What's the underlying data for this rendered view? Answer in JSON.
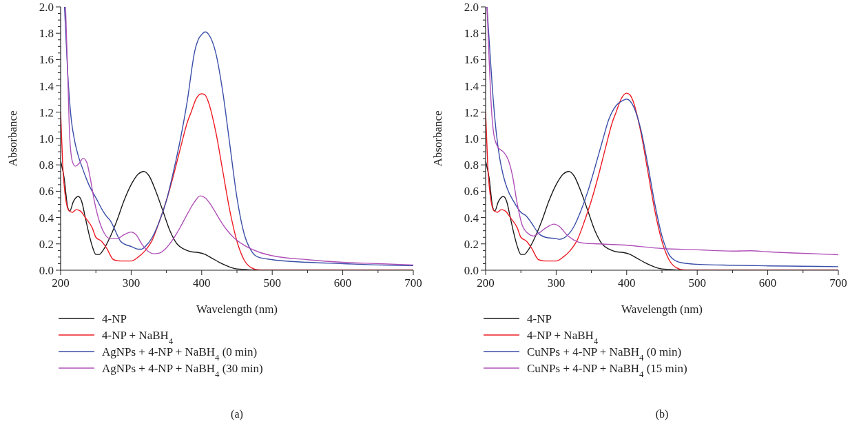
{
  "chart_data": [
    {
      "type": "line",
      "xlabel": "Wavelength (nm)",
      "ylabel": "Absorbance",
      "xlim": [
        200,
        700
      ],
      "ylim": [
        0,
        2
      ],
      "xticks": [
        200,
        {
          "value": 250,
          "label": null
        },
        300,
        {
          "value": 350,
          "label": null
        },
        400,
        {
          "value": 450,
          "label": null
        },
        500,
        {
          "value": 550,
          "label": null
        },
        600,
        {
          "value": 650,
          "label": null
        },
        700
      ],
      "yticks": [
        {
          "value": 0,
          "label": "0.0"
        },
        {
          "value": 0.05,
          "label": null
        },
        {
          "value": 0.1,
          "label": null
        },
        {
          "value": 0.15,
          "label": null
        },
        {
          "value": 0.2,
          "label": "0.2"
        },
        {
          "value": 0.25,
          "label": null
        },
        {
          "value": 0.3,
          "label": null
        },
        {
          "value": 0.35,
          "label": null
        },
        {
          "value": 0.4,
          "label": "0.4"
        },
        {
          "value": 0.45,
          "label": null
        },
        {
          "value": 0.5,
          "label": null
        },
        {
          "value": 0.55,
          "label": null
        },
        {
          "value": 0.6,
          "label": "0.6"
        },
        {
          "value": 0.65,
          "label": null
        },
        {
          "value": 0.7,
          "label": null
        },
        {
          "value": 0.75,
          "label": null
        },
        {
          "value": 0.8,
          "label": "0.8"
        },
        {
          "value": 0.85,
          "label": null
        },
        {
          "value": 0.9,
          "label": null
        },
        {
          "value": 0.95,
          "label": null
        },
        {
          "value": 1,
          "label": "1.0"
        },
        {
          "value": 1.05,
          "label": null
        },
        {
          "value": 1.1,
          "label": null
        },
        {
          "value": 1.15,
          "label": null
        },
        {
          "value": 1.2,
          "label": "1.2"
        },
        {
          "value": 1.25,
          "label": null
        },
        {
          "value": 1.3,
          "label": null
        },
        {
          "value": 1.35,
          "label": null
        },
        {
          "value": 1.4,
          "label": "1.4"
        },
        {
          "value": 1.45,
          "label": null
        },
        {
          "value": 1.5,
          "label": null
        },
        {
          "value": 1.55,
          "label": null
        },
        {
          "value": 1.6,
          "label": "1.6"
        },
        {
          "value": 1.65,
          "label": null
        },
        {
          "value": 1.7,
          "label": null
        },
        {
          "value": 1.75,
          "label": null
        },
        {
          "value": 1.8,
          "label": "1.8"
        },
        {
          "value": 1.85,
          "label": null
        },
        {
          "value": 1.9,
          "label": null
        },
        {
          "value": 1.95,
          "label": null
        },
        {
          "value": 2,
          "label": "2.0"
        }
      ],
      "legend": "bottom",
      "grid": false,
      "annotations": [
        "(a)"
      ],
      "series": [
        {
          "name": "4-NP",
          "color": "#1a1a1a",
          "x": [
            200,
            205,
            210,
            213,
            218,
            225,
            230,
            235,
            240,
            245,
            250,
            255,
            260,
            270,
            280,
            290,
            300,
            310,
            318,
            325,
            335,
            345,
            355,
            365,
            375,
            385,
            395,
            405,
            415,
            425,
            435,
            445,
            460,
            480,
            700
          ],
          "values": [
            0.83,
            0.7,
            0.48,
            0.45,
            0.52,
            0.56,
            0.52,
            0.4,
            0.28,
            0.18,
            0.12,
            0.12,
            0.15,
            0.25,
            0.38,
            0.53,
            0.65,
            0.73,
            0.75,
            0.72,
            0.6,
            0.45,
            0.3,
            0.2,
            0.16,
            0.14,
            0.135,
            0.12,
            0.09,
            0.06,
            0.035,
            0.015,
            0.005,
            0,
            0
          ]
        },
        {
          "name": "4-NP + NaBH$_{4}$",
          "color": "#ee1c25",
          "x": [
            200,
            203,
            207,
            212,
            217,
            222,
            228,
            235,
            245,
            250,
            258,
            265,
            275,
            285,
            300,
            310,
            320,
            330,
            340,
            350,
            360,
            370,
            380,
            385,
            392,
            400,
            405,
            410,
            420,
            430,
            440,
            450,
            460,
            470,
            480,
            500,
            700
          ],
          "values": [
            1.2,
            0.8,
            0.55,
            0.45,
            0.44,
            0.46,
            0.45,
            0.4,
            0.32,
            0.25,
            0.22,
            0.17,
            0.08,
            0.07,
            0.07,
            0.1,
            0.15,
            0.23,
            0.37,
            0.53,
            0.72,
            0.93,
            1.13,
            1.2,
            1.3,
            1.34,
            1.33,
            1.27,
            1.05,
            0.75,
            0.45,
            0.22,
            0.08,
            0.02,
            0.003,
            0,
            0
          ]
        },
        {
          "name": "AgNPs + 4-NP + NaBH$_{4}$ (0 min)",
          "color": "#3a4ea8",
          "x": [
            205.5,
            210,
            215,
            220,
            225,
            230,
            240,
            250,
            260,
            265,
            270,
            275,
            280,
            285,
            290,
            300,
            310,
            315,
            320,
            330,
            340,
            350,
            360,
            370,
            380,
            388,
            390,
            395,
            400,
            405,
            410,
            420,
            430,
            440,
            450,
            460,
            470,
            480,
            500,
            550,
            600,
            650,
            700
          ],
          "values": [
            2,
            1.5,
            1.15,
            0.98,
            0.87,
            0.79,
            0.65,
            0.55,
            0.45,
            0.41,
            0.38,
            0.33,
            0.27,
            0.22,
            0.2,
            0.18,
            0.16,
            0.16,
            0.18,
            0.25,
            0.37,
            0.53,
            0.75,
            1,
            1.3,
            1.6,
            1.66,
            1.75,
            1.79,
            1.81,
            1.79,
            1.65,
            1.35,
            0.95,
            0.55,
            0.28,
            0.15,
            0.1,
            0.08,
            0.06,
            0.05,
            0.04,
            0.035
          ]
        },
        {
          "name": "AgNPs + 4-NP + NaBH$_{4}$ (30 min)",
          "color": "#b050b8",
          "x": [
            207,
            210,
            213,
            217,
            221,
            226,
            232,
            237,
            242,
            248,
            255,
            262,
            270,
            280,
            290,
            300,
            307,
            315,
            325,
            332,
            340,
            350,
            360,
            370,
            380,
            390,
            398,
            405,
            415,
            425,
            435,
            445,
            460,
            480,
            500,
            550,
            600,
            650,
            700
          ],
          "values": [
            2,
            1.5,
            1,
            0.82,
            0.79,
            0.81,
            0.85,
            0.82,
            0.7,
            0.52,
            0.37,
            0.28,
            0.24,
            0.24,
            0.27,
            0.29,
            0.27,
            0.2,
            0.14,
            0.125,
            0.13,
            0.17,
            0.24,
            0.33,
            0.43,
            0.52,
            0.565,
            0.55,
            0.48,
            0.39,
            0.31,
            0.25,
            0.19,
            0.14,
            0.11,
            0.08,
            0.06,
            0.05,
            0.04
          ]
        }
      ]
    },
    {
      "type": "line",
      "xlabel": "Wavelength (nm)",
      "ylabel": "Absorbance",
      "xlim": [
        200,
        700
      ],
      "ylim": [
        0,
        2
      ],
      "xticks": [
        200,
        {
          "value": 250,
          "label": null
        },
        300,
        {
          "value": 350,
          "label": null
        },
        400,
        {
          "value": 450,
          "label": null
        },
        500,
        {
          "value": 550,
          "label": null
        },
        600,
        {
          "value": 650,
          "label": null
        },
        700
      ],
      "yticks": [
        {
          "value": 0,
          "label": "0.0"
        },
        {
          "value": 0.05,
          "label": null
        },
        {
          "value": 0.1,
          "label": null
        },
        {
          "value": 0.15,
          "label": null
        },
        {
          "value": 0.2,
          "label": "0.2"
        },
        {
          "value": 0.25,
          "label": null
        },
        {
          "value": 0.3,
          "label": null
        },
        {
          "value": 0.35,
          "label": null
        },
        {
          "value": 0.4,
          "label": "0.4"
        },
        {
          "value": 0.45,
          "label": null
        },
        {
          "value": 0.5,
          "label": null
        },
        {
          "value": 0.55,
          "label": null
        },
        {
          "value": 0.6,
          "label": "0.6"
        },
        {
          "value": 0.65,
          "label": null
        },
        {
          "value": 0.7,
          "label": null
        },
        {
          "value": 0.75,
          "label": null
        },
        {
          "value": 0.8,
          "label": "0.8"
        },
        {
          "value": 0.85,
          "label": null
        },
        {
          "value": 0.9,
          "label": null
        },
        {
          "value": 0.95,
          "label": null
        },
        {
          "value": 1,
          "label": "1.0"
        },
        {
          "value": 1.05,
          "label": null
        },
        {
          "value": 1.1,
          "label": null
        },
        {
          "value": 1.15,
          "label": null
        },
        {
          "value": 1.2,
          "label": "1.2"
        },
        {
          "value": 1.25,
          "label": null
        },
        {
          "value": 1.3,
          "label": null
        },
        {
          "value": 1.35,
          "label": null
        },
        {
          "value": 1.4,
          "label": "1.4"
        },
        {
          "value": 1.45,
          "label": null
        },
        {
          "value": 1.5,
          "label": null
        },
        {
          "value": 1.55,
          "label": null
        },
        {
          "value": 1.6,
          "label": "1.6"
        },
        {
          "value": 1.65,
          "label": null
        },
        {
          "value": 1.7,
          "label": null
        },
        {
          "value": 1.75,
          "label": null
        },
        {
          "value": 1.8,
          "label": "1.8"
        },
        {
          "value": 1.85,
          "label": null
        },
        {
          "value": 1.9,
          "label": null
        },
        {
          "value": 1.95,
          "label": null
        },
        {
          "value": 2,
          "label": "2.0"
        }
      ],
      "legend": "bottom",
      "grid": false,
      "annotations": [
        "(b)"
      ],
      "series": [
        {
          "name": "4-NP",
          "color": "#1a1a1a",
          "x": [
            200,
            205,
            210,
            213,
            218,
            225,
            230,
            235,
            240,
            245,
            250,
            255,
            260,
            270,
            280,
            290,
            300,
            310,
            318,
            325,
            335,
            345,
            355,
            365,
            375,
            385,
            395,
            405,
            415,
            425,
            435,
            445,
            460,
            480,
            700
          ],
          "values": [
            0.83,
            0.7,
            0.48,
            0.45,
            0.52,
            0.56,
            0.52,
            0.4,
            0.28,
            0.18,
            0.12,
            0.12,
            0.15,
            0.25,
            0.38,
            0.53,
            0.65,
            0.73,
            0.75,
            0.72,
            0.6,
            0.45,
            0.3,
            0.2,
            0.16,
            0.14,
            0.135,
            0.12,
            0.09,
            0.06,
            0.035,
            0.015,
            0.005,
            0,
            0
          ]
        },
        {
          "name": "4-NP + NaBH$_{4}$",
          "color": "#ee1c25",
          "x": [
            200,
            203,
            207,
            212,
            217,
            222,
            228,
            235,
            245,
            250,
            258,
            265,
            275,
            285,
            300,
            310,
            320,
            330,
            340,
            350,
            360,
            370,
            380,
            385,
            392,
            400,
            405,
            410,
            420,
            430,
            440,
            450,
            460,
            470,
            480,
            500,
            700
          ],
          "values": [
            1.2,
            0.8,
            0.55,
            0.45,
            0.44,
            0.46,
            0.45,
            0.4,
            0.32,
            0.25,
            0.22,
            0.17,
            0.08,
            0.07,
            0.07,
            0.1,
            0.15,
            0.23,
            0.37,
            0.53,
            0.72,
            0.93,
            1.13,
            1.2,
            1.3,
            1.345,
            1.33,
            1.27,
            1.05,
            0.75,
            0.45,
            0.22,
            0.08,
            0.02,
            0.003,
            0,
            0
          ]
        },
        {
          "name": "CuNPs + 4-NP + NaBH$_{4}$ (0 min)",
          "color": "#3a4ea8",
          "x": [
            202,
            205,
            210,
            215,
            220,
            225,
            230,
            240,
            250,
            258,
            265,
            275,
            285,
            300,
            305,
            315,
            325,
            335,
            345,
            355,
            365,
            375,
            385,
            395,
            400,
            410,
            420,
            430,
            440,
            450,
            460,
            470,
            480,
            500,
            550,
            600,
            650,
            700
          ],
          "values": [
            2,
            1.75,
            1.35,
            1.05,
            0.85,
            0.72,
            0.63,
            0.52,
            0.44,
            0.41,
            0.36,
            0.28,
            0.25,
            0.24,
            0.235,
            0.26,
            0.33,
            0.45,
            0.6,
            0.78,
            0.97,
            1.15,
            1.25,
            1.29,
            1.3,
            1.24,
            1.07,
            0.8,
            0.5,
            0.26,
            0.12,
            0.07,
            0.055,
            0.045,
            0.038,
            0.033,
            0.03,
            0.027
          ]
        },
        {
          "name": "CuNPs + 4-NP + NaBH$_{4}$ (15 min)",
          "color": "#b050b8",
          "x": [
            202,
            205,
            208,
            212,
            218,
            225,
            232,
            238,
            245,
            252,
            260,
            268,
            275,
            285,
            297,
            305,
            315,
            325,
            340,
            360,
            380,
            400,
            420,
            450,
            500,
            550,
            575,
            600,
            650,
            700
          ],
          "values": [
            2,
            1.6,
            1.25,
            1.02,
            0.93,
            0.9,
            0.84,
            0.72,
            0.5,
            0.34,
            0.28,
            0.26,
            0.28,
            0.32,
            0.35,
            0.33,
            0.27,
            0.23,
            0.205,
            0.2,
            0.195,
            0.19,
            0.18,
            0.165,
            0.155,
            0.145,
            0.148,
            0.14,
            0.128,
            0.118
          ]
        }
      ]
    }
  ]
}
